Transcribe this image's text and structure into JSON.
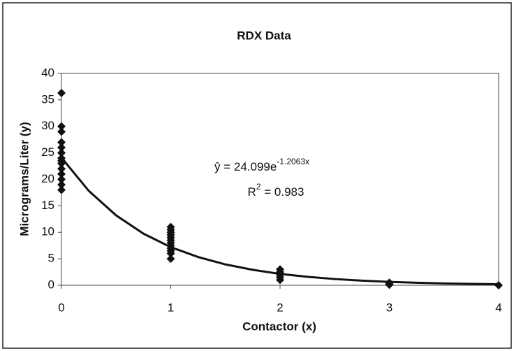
{
  "chart_data": {
    "type": "scatter",
    "title": "RDX Data",
    "x_label": "Contactor (x)",
    "y_label": "Micrograms/Liter (y)",
    "xlim": [
      0,
      4
    ],
    "xticks": [
      0,
      1,
      2,
      3,
      4
    ],
    "ylim": [
      0,
      40
    ],
    "yticks": [
      0,
      5,
      10,
      15,
      20,
      25,
      30,
      35,
      40
    ],
    "grid": false,
    "series": [
      {
        "color": "#111111",
        "x": [
          0,
          0,
          0,
          0,
          0,
          0,
          0,
          0,
          0,
          0,
          0,
          0,
          0,
          0,
          1,
          1,
          1,
          1,
          1,
          1,
          1,
          1,
          1,
          1,
          1,
          1,
          2,
          2,
          2,
          2,
          2,
          3,
          3,
          3,
          4
        ],
        "values": [
          18,
          19,
          20,
          21,
          22,
          23,
          23.5,
          24,
          25,
          26,
          27,
          29,
          30,
          36.3,
          5,
          6,
          6.5,
          7,
          7.5,
          8,
          8.5,
          9,
          9.5,
          10,
          10.5,
          11,
          1,
          1.5,
          2,
          2.5,
          3,
          0.1,
          0.3,
          0.5,
          0
        ]
      }
    ],
    "trendline": {
      "color": "#111111",
      "x": [
        0,
        0.25,
        0.5,
        0.75,
        1,
        1.25,
        1.5,
        1.75,
        2,
        2.25,
        2.5,
        2.75,
        3,
        3.25,
        3.5,
        3.75,
        4
      ],
      "values": [
        24.1,
        17.82,
        13.2,
        9.75,
        7.2,
        5.34,
        3.94,
        2.92,
        2.15,
        1.6,
        1.18,
        0.87,
        0.64,
        0.48,
        0.35,
        0.26,
        0.19
      ]
    },
    "equation": {
      "base": "ŷ = 24.099e",
      "exponent": "-1.2063x"
    },
    "r_squared": {
      "base": "R",
      "exponent": "2",
      "rest": " = 0.983"
    }
  }
}
